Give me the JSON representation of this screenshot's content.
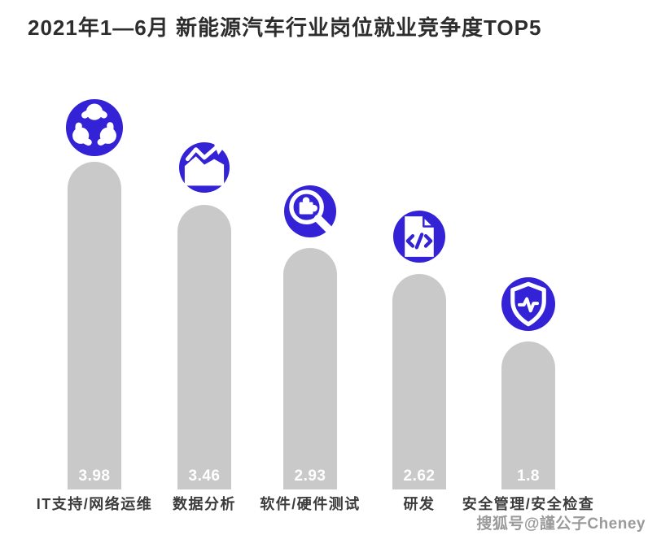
{
  "page": {
    "title": "2021年1—6月 新能源汽车行业岗位就业竞争度TOP5",
    "watermark": "搜狐号@謹公子Cheney"
  },
  "colors": {
    "accent_blue": "#3322d6",
    "bar_gray": "#c9c9c9",
    "title_text": "#2d2d2d",
    "label_text": "#3c3c3c",
    "value_text": "#ffffff",
    "watermark_text": "#9a9a9a"
  },
  "chart_data": {
    "type": "bar",
    "title": "2021年1—6月 新能源汽车行业岗位就业竞争度TOP5",
    "categories": [
      "IT支持/网络运维",
      "数据分析",
      "软件/硬件测试",
      "研发",
      "安全管理/安全检查"
    ],
    "values": [
      3.98,
      3.46,
      2.93,
      2.62,
      1.8
    ],
    "value_labels": [
      "3.98",
      "3.46",
      "2.93",
      "2.62",
      "1.8"
    ],
    "icons": [
      "share-network-icon",
      "trend-chart-icon",
      "magnifier-puzzle-icon",
      "code-document-icon",
      "shield-pulse-icon"
    ],
    "xlabel": "",
    "ylabel": "",
    "ylim": [
      0,
      4.2
    ],
    "grid": false,
    "legend": "none",
    "bar_style": "rounded-top",
    "orientation": "vertical"
  }
}
